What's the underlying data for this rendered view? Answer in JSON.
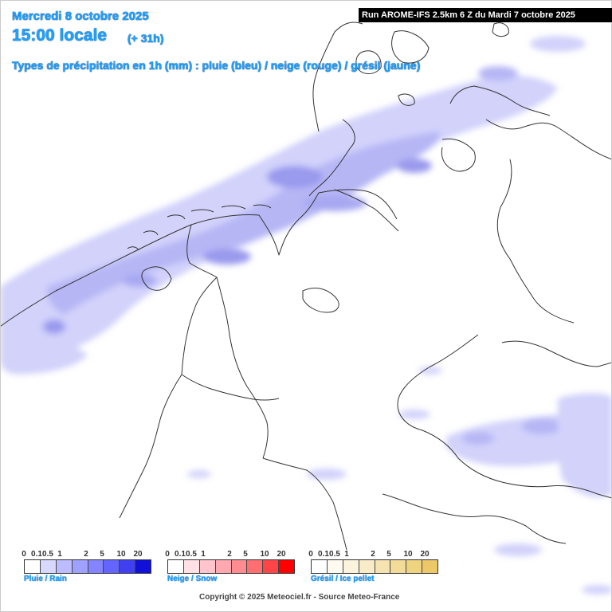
{
  "header": {
    "date": "Mercredi 8 octobre 2025",
    "time": "15:00 locale",
    "lead": "(+ 31h)",
    "subtitle": "Types de précipitation en 1h (mm) : pluie (bleu) / neige (rouge) / grésil (jaune)",
    "run": "Run AROME-IFS 2.5km 6 Z du Mardi 7 octobre 2025"
  },
  "legends": [
    {
      "id": "rain",
      "label": "Pluie / Rain",
      "ticks": [
        "0",
        "0.1",
        "0.5",
        "1",
        "2",
        "5",
        "10",
        "20"
      ],
      "colors": [
        "#ffffff",
        "#d8d8ff",
        "#bcbcff",
        "#a0a0ff",
        "#8484ff",
        "#6464ff",
        "#4040f0",
        "#1010d8"
      ]
    },
    {
      "id": "snow",
      "label": "Neige / Snow",
      "ticks": [
        "0",
        "0.1",
        "0.5",
        "1",
        "2",
        "5",
        "10",
        "20"
      ],
      "colors": [
        "#ffffff",
        "#ffe0e4",
        "#ffc4cc",
        "#ffa8b0",
        "#ff8c90",
        "#ff6e70",
        "#ff4448",
        "#ff0000"
      ]
    },
    {
      "id": "ice",
      "label": "Grésil / Ice pellet",
      "ticks": [
        "0",
        "0.1",
        "0.5",
        "1",
        "2",
        "5",
        "10",
        "20"
      ],
      "colors": [
        "#ffffff",
        "#fffaf0",
        "#fbf3dc",
        "#f8ecc8",
        "#f5e4b0",
        "#f2dc98",
        "#efd480",
        "#ecc868"
      ]
    }
  ],
  "precip_colors": {
    "light": "#d0d0fa",
    "moderate": "#b4b4f4",
    "heavy": "#9898ee"
  },
  "copyright": "Copyright © 2025 Meteociel.fr - Source Meteo-France"
}
